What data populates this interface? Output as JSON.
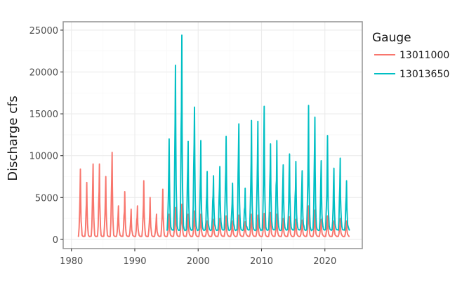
{
  "chart_data": {
    "type": "line",
    "title": "",
    "xlabel": "",
    "ylabel": "Discharge cfs",
    "xlim": [
      1978.7,
      2025.9
    ],
    "ylim": [
      -1100,
      26000
    ],
    "x_ticks": [
      1980,
      1990,
      2000,
      2010,
      2020
    ],
    "y_ticks": [
      0,
      5000,
      10000,
      15000,
      20000,
      25000
    ],
    "grid": true,
    "legend": {
      "title": "Gauge",
      "position": "right"
    },
    "series": [
      {
        "name": "13011000",
        "color": "#F8766D",
        "baseline": 350,
        "annual_peaks": [
          {
            "year": 1981,
            "peak": 8400
          },
          {
            "year": 1982,
            "peak": 6800
          },
          {
            "year": 1983,
            "peak": 9000
          },
          {
            "year": 1984,
            "peak": 9000
          },
          {
            "year": 1985,
            "peak": 7500
          },
          {
            "year": 1986,
            "peak": 10400
          },
          {
            "year": 1987,
            "peak": 4000
          },
          {
            "year": 1988,
            "peak": 5700
          },
          {
            "year": 1989,
            "peak": 3600
          },
          {
            "year": 1990,
            "peak": 4000
          },
          {
            "year": 1991,
            "peak": 7000
          },
          {
            "year": 1992,
            "peak": 5000
          },
          {
            "year": 1993,
            "peak": 3000
          },
          {
            "year": 1994,
            "peak": 6000
          },
          {
            "year": 1995,
            "peak": 3000
          },
          {
            "year": 1996,
            "peak": 3800
          },
          {
            "year": 1997,
            "peak": 4200
          },
          {
            "year": 1998,
            "peak": 3000
          },
          {
            "year": 1999,
            "peak": 3400
          },
          {
            "year": 2000,
            "peak": 3000
          },
          {
            "year": 2001,
            "peak": 2200
          },
          {
            "year": 2002,
            "peak": 2400
          },
          {
            "year": 2003,
            "peak": 2500
          },
          {
            "year": 2004,
            "peak": 2800
          },
          {
            "year": 2005,
            "peak": 2200
          },
          {
            "year": 2006,
            "peak": 2900
          },
          {
            "year": 2007,
            "peak": 2100
          },
          {
            "year": 2008,
            "peak": 3000
          },
          {
            "year": 2009,
            "peak": 2900
          },
          {
            "year": 2010,
            "peak": 3100
          },
          {
            "year": 2011,
            "peak": 3200
          },
          {
            "year": 2012,
            "peak": 3000
          },
          {
            "year": 2013,
            "peak": 2500
          },
          {
            "year": 2014,
            "peak": 2700
          },
          {
            "year": 2015,
            "peak": 2400
          },
          {
            "year": 2016,
            "peak": 2300
          },
          {
            "year": 2017,
            "peak": 4000
          },
          {
            "year": 2018,
            "peak": 3500
          },
          {
            "year": 2019,
            "peak": 2400
          },
          {
            "year": 2020,
            "peak": 2800
          },
          {
            "year": 2021,
            "peak": 2200
          },
          {
            "year": 2022,
            "peak": 2500
          },
          {
            "year": 2023,
            "peak": 2200
          }
        ]
      },
      {
        "name": "13013650",
        "color": "#00BFC4",
        "baseline": 1100,
        "annual_peaks": [
          {
            "year": 1995,
            "peak": 12000
          },
          {
            "year": 1996,
            "peak": 20800
          },
          {
            "year": 1997,
            "peak": 24400
          },
          {
            "year": 1998,
            "peak": 11700
          },
          {
            "year": 1999,
            "peak": 15800
          },
          {
            "year": 2000,
            "peak": 11800
          },
          {
            "year": 2001,
            "peak": 8100
          },
          {
            "year": 2002,
            "peak": 7600
          },
          {
            "year": 2003,
            "peak": 8700
          },
          {
            "year": 2004,
            "peak": 12300
          },
          {
            "year": 2005,
            "peak": 6700
          },
          {
            "year": 2006,
            "peak": 13800
          },
          {
            "year": 2007,
            "peak": 6100
          },
          {
            "year": 2008,
            "peak": 14200
          },
          {
            "year": 2009,
            "peak": 14100
          },
          {
            "year": 2010,
            "peak": 15900
          },
          {
            "year": 2011,
            "peak": 11400
          },
          {
            "year": 2012,
            "peak": 11800
          },
          {
            "year": 2013,
            "peak": 8900
          },
          {
            "year": 2014,
            "peak": 10200
          },
          {
            "year": 2015,
            "peak": 9300
          },
          {
            "year": 2016,
            "peak": 8200
          },
          {
            "year": 2017,
            "peak": 16000
          },
          {
            "year": 2018,
            "peak": 14600
          },
          {
            "year": 2019,
            "peak": 9400
          },
          {
            "year": 2020,
            "peak": 12400
          },
          {
            "year": 2021,
            "peak": 8500
          },
          {
            "year": 2022,
            "peak": 9700
          },
          {
            "year": 2023,
            "peak": 7000
          }
        ]
      }
    ]
  }
}
